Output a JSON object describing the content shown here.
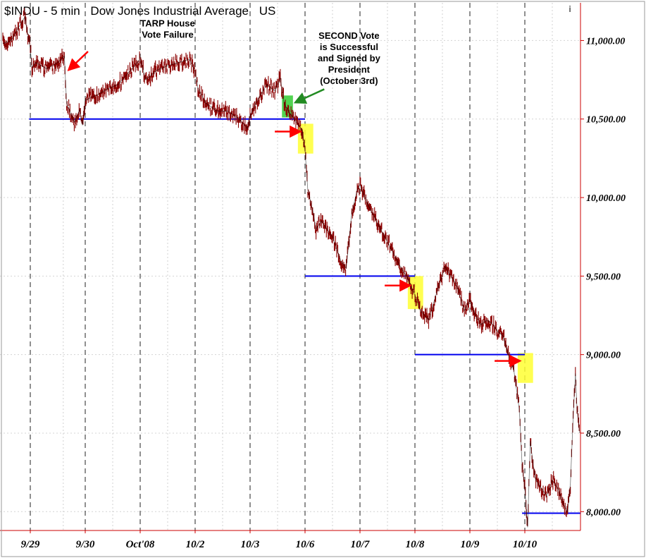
{
  "header": {
    "symbol": "$INDU - 5 min",
    "name": "Dow Jones Industrial Average",
    "region": "US",
    "corner_mark": "ⅰ"
  },
  "chart_data": {
    "type": "line",
    "title": "$INDU - 5 min  Dow Jones Industrial Average  US",
    "xlabel": "",
    "ylabel": "",
    "ylim": [
      7880,
      11240
    ],
    "grid": true,
    "price_color": "#8b0000",
    "yticks": [
      {
        "value": 11000,
        "label": "11,000.00"
      },
      {
        "value": 10500,
        "label": "10,500.00"
      },
      {
        "value": 10000,
        "label": "10,000.00"
      },
      {
        "value": 9500,
        "label": "9,500.00"
      },
      {
        "value": 9000,
        "label": "9,000.00"
      },
      {
        "value": 8500,
        "label": "8,500.00"
      },
      {
        "value": 8000,
        "label": "8,000.00"
      }
    ],
    "xticks": [
      {
        "t": 0.0,
        "label": "9/29"
      },
      {
        "t": 1.0,
        "label": "9/30"
      },
      {
        "t": 2.0,
        "label": "Oct'08"
      },
      {
        "t": 3.0,
        "label": "10/2"
      },
      {
        "t": 4.0,
        "label": "10/3"
      },
      {
        "t": 5.0,
        "label": "10/6"
      },
      {
        "t": 6.0,
        "label": "10/7"
      },
      {
        "t": 7.0,
        "label": "10/8"
      },
      {
        "t": 8.0,
        "label": "10/9"
      },
      {
        "t": 9.0,
        "label": "10/10"
      }
    ],
    "session_lines": [
      0.0,
      0.6,
      1.0,
      1.5,
      2.0,
      2.5,
      3.0,
      3.5,
      4.0,
      4.5,
      5.0,
      5.5,
      6.0,
      6.5,
      7.0,
      7.5,
      8.0,
      8.5,
      9.0,
      9.5
    ],
    "dashed_lines": [
      0.0,
      1.0,
      2.0,
      3.0,
      4.0,
      5.0,
      6.0,
      7.0,
      8.0,
      9.0
    ],
    "x_max": 10.05,
    "price_series": {
      "name": "$INDU",
      "x": [
        -0.5,
        -0.35,
        -0.1,
        0.0,
        0.03,
        0.1,
        0.3,
        0.5,
        0.62,
        0.66,
        0.7,
        0.8,
        0.9,
        0.95,
        1.0,
        1.2,
        1.4,
        1.6,
        1.8,
        2.0,
        2.1,
        2.3,
        2.5,
        2.7,
        2.9,
        3.0,
        3.05,
        3.2,
        3.4,
        3.6,
        3.8,
        3.95,
        4.0,
        4.1,
        4.3,
        4.45,
        4.55,
        4.62,
        4.7,
        4.8,
        4.95,
        5.0,
        5.05,
        5.15,
        5.2,
        5.3,
        5.5,
        5.65,
        5.75,
        5.85,
        5.95,
        6.0,
        6.15,
        6.3,
        6.45,
        6.6,
        6.75,
        6.85,
        6.95,
        7.0,
        7.1,
        7.25,
        7.4,
        7.55,
        7.65,
        7.75,
        7.9,
        8.0,
        8.1,
        8.2,
        8.3,
        8.4,
        8.5,
        8.6,
        8.7,
        8.8,
        8.9,
        8.95,
        9.0,
        9.05,
        9.1,
        9.15,
        9.2,
        9.3,
        9.4,
        9.5,
        9.6,
        9.7,
        9.78,
        9.83,
        9.88,
        9.92,
        9.95,
        10.0
      ],
      "values": [
        10980,
        11000,
        11150,
        10950,
        10830,
        10860,
        10820,
        10860,
        10900,
        10600,
        10570,
        10480,
        10560,
        10460,
        10620,
        10650,
        10690,
        10720,
        10800,
        10880,
        10750,
        10810,
        10840,
        10860,
        10880,
        10800,
        10700,
        10600,
        10550,
        10550,
        10500,
        10440,
        10520,
        10600,
        10720,
        10680,
        10760,
        10600,
        10550,
        10500,
        10430,
        10300,
        10050,
        9900,
        9800,
        9850,
        9750,
        9600,
        9550,
        9900,
        10050,
        10080,
        9950,
        9850,
        9750,
        9650,
        9550,
        9500,
        9420,
        9380,
        9280,
        9220,
        9400,
        9560,
        9500,
        9450,
        9280,
        9350,
        9250,
        9190,
        9220,
        9200,
        9150,
        9120,
        9000,
        8900,
        8650,
        8300,
        8150,
        7900,
        8450,
        8300,
        8200,
        8150,
        8100,
        8200,
        8150,
        8050,
        8000,
        8180,
        8600,
        8880,
        8650,
        8500
      ]
    },
    "support_lines": [
      {
        "x1": -0.02,
        "x2": 5.0,
        "value": 10500
      },
      {
        "x1": 5.0,
        "x2": 7.0,
        "value": 9500
      },
      {
        "x1": 7.0,
        "x2": 9.0,
        "value": 9000
      },
      {
        "x1": 8.95,
        "x2": 10.02,
        "value": 7990
      }
    ],
    "highlight_boxes": [
      {
        "x1": 4.58,
        "x2": 4.78,
        "y_low": 10510,
        "y_high": 10650,
        "color": "#33cc33"
      },
      {
        "x1": 4.87,
        "x2": 5.15,
        "y_low": 10280,
        "y_high": 10470,
        "color": "#ffff33"
      },
      {
        "x1": 6.87,
        "x2": 7.15,
        "y_low": 9290,
        "y_high": 9500,
        "color": "#ffff33"
      },
      {
        "x1": 8.87,
        "x2": 9.15,
        "y_low": 8820,
        "y_high": 9010,
        "color": "#ffff33"
      }
    ],
    "annotations": [
      {
        "id": "tarp",
        "lines": [
          "TARP House",
          "Vote Failure"
        ],
        "anchor": "middle",
        "x": 2.5,
        "value": 11090
      },
      {
        "id": "second",
        "lines": [
          "SECOND Vote",
          "is Successful",
          "and Signed by",
          "President",
          "(October 3rd)"
        ],
        "anchor": "middle",
        "x": 5.8,
        "value": 11010
      }
    ],
    "arrows": [
      {
        "x1": 1.05,
        "y1": 10930,
        "x2": 0.72,
        "y2": 10820,
        "color": "#ff0000"
      },
      {
        "x1": 5.35,
        "y1": 10690,
        "x2": 4.85,
        "y2": 10610,
        "color": "#228b22"
      },
      {
        "x1": 4.45,
        "y1": 10420,
        "x2": 4.88,
        "y2": 10420,
        "color": "#ff0000"
      },
      {
        "x1": 6.45,
        "y1": 9440,
        "x2": 6.88,
        "y2": 9440,
        "color": "#ff0000"
      },
      {
        "x1": 8.45,
        "y1": 8960,
        "x2": 8.88,
        "y2": 8960,
        "color": "#ff0000"
      }
    ]
  }
}
